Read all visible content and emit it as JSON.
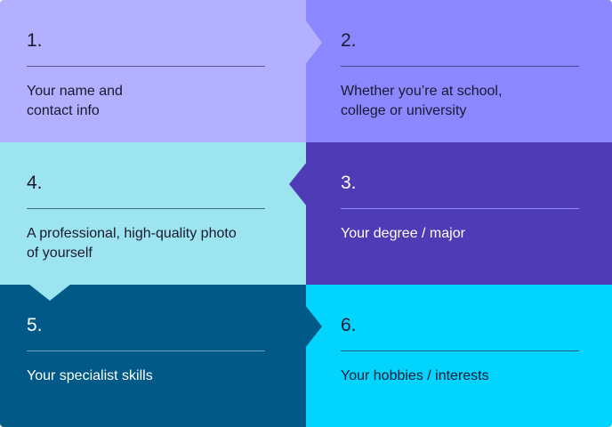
{
  "colors": {
    "step1": "#b3b0ff",
    "step2": "#8a87ff",
    "step3": "#4f3bb6",
    "step4": "#9ce4f0",
    "step5": "#005987",
    "step6": "#00d4ff"
  },
  "steps": [
    {
      "number": "1.",
      "text": "Your name and contact info"
    },
    {
      "number": "2.",
      "text": "Whether you’re at school, college or university"
    },
    {
      "number": "3.",
      "text": "Your degree / major"
    },
    {
      "number": "4.",
      "text": "A professional, high-quality photo of yourself"
    },
    {
      "number": "5.",
      "text": "Your specialist skills"
    },
    {
      "number": "6.",
      "text": "Your hobbies / interests"
    }
  ]
}
